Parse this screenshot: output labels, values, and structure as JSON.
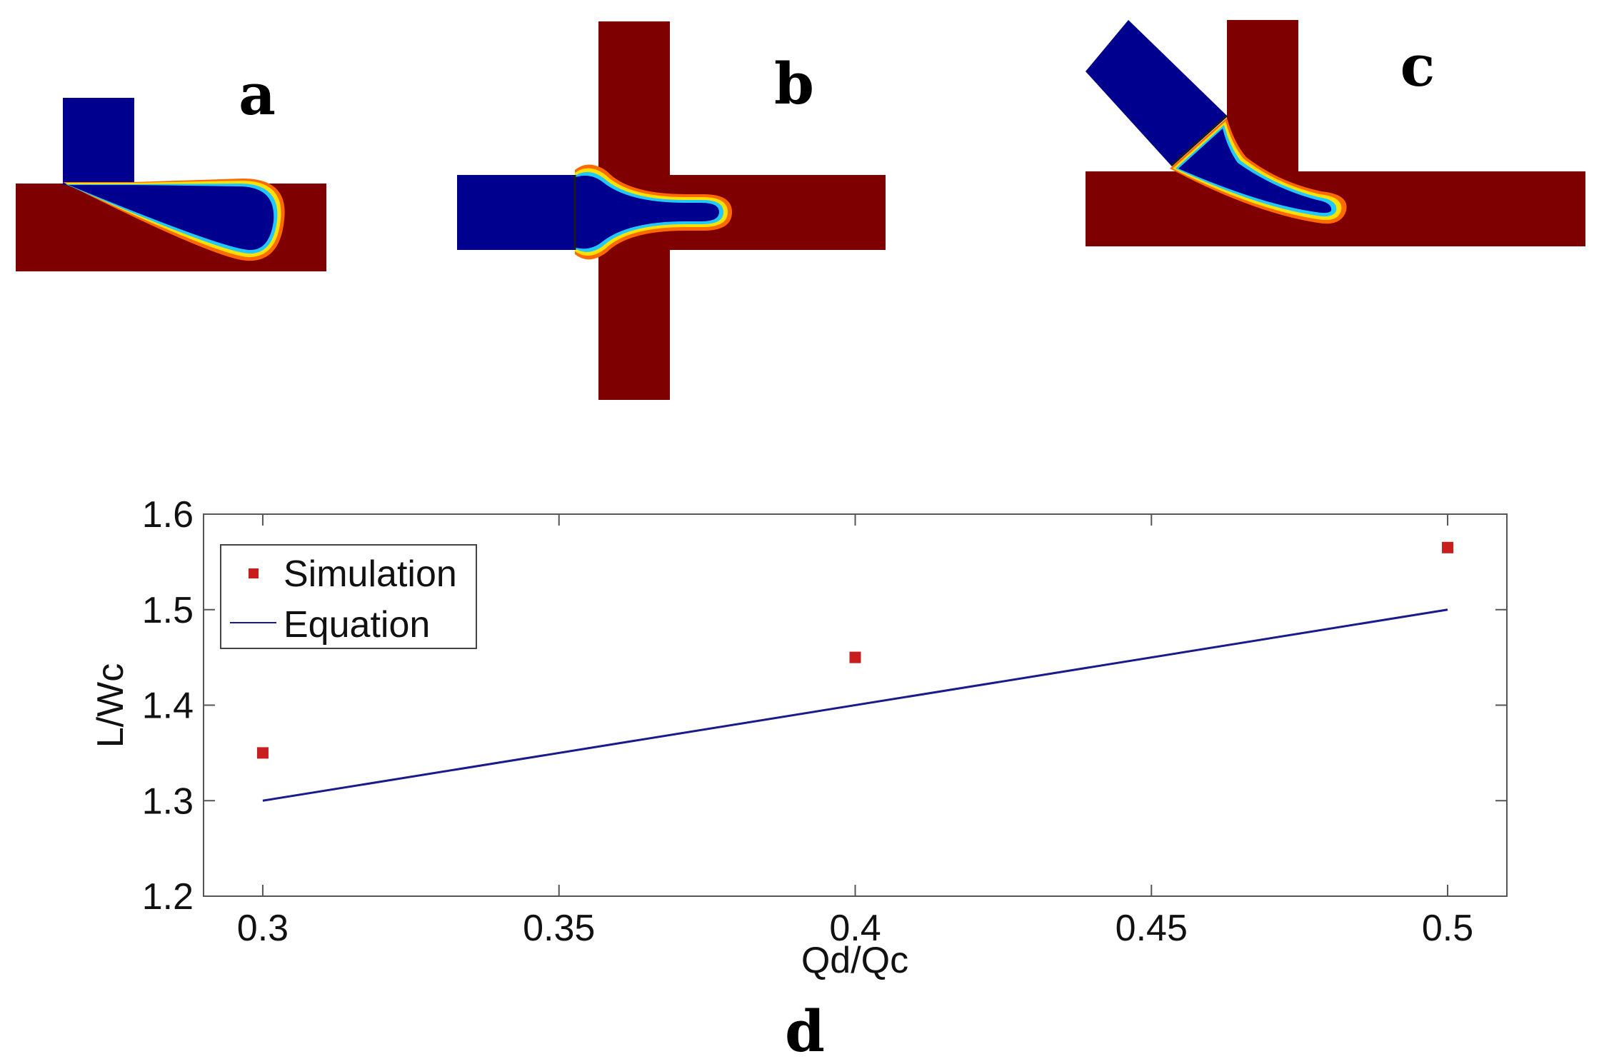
{
  "panels": {
    "a": "a",
    "b": "b",
    "c": "c",
    "d": "d"
  },
  "colors": {
    "continuous_phase": "#7f0000",
    "dispersed_phase": "#00008f",
    "equation_line": "#1a1a8c",
    "simulation_marker": "#c81e1e"
  },
  "chart_data": {
    "type": "scatter",
    "xlabel": "Qd/Qc",
    "ylabel": "L/Wc",
    "xlim": [
      0.29,
      0.51
    ],
    "ylim": [
      1.2,
      1.6
    ],
    "xticks": [
      0.3,
      0.35,
      0.4,
      0.45,
      0.5
    ],
    "xtick_labels": [
      "0.3",
      "0.35",
      "0.4",
      "0.45",
      "0.5"
    ],
    "yticks": [
      1.2,
      1.3,
      1.4,
      1.5,
      1.6
    ],
    "ytick_labels": [
      "1.2",
      "1.3",
      "1.4",
      "1.5",
      "1.6"
    ],
    "legend_position": "top-left",
    "series": [
      {
        "name": "Simulation",
        "kind": "marker",
        "x": [
          0.3,
          0.4,
          0.5
        ],
        "y": [
          1.35,
          1.45,
          1.565
        ]
      },
      {
        "name": "Equation",
        "kind": "line",
        "x": [
          0.3,
          0.5
        ],
        "y": [
          1.3,
          1.5
        ]
      }
    ]
  }
}
